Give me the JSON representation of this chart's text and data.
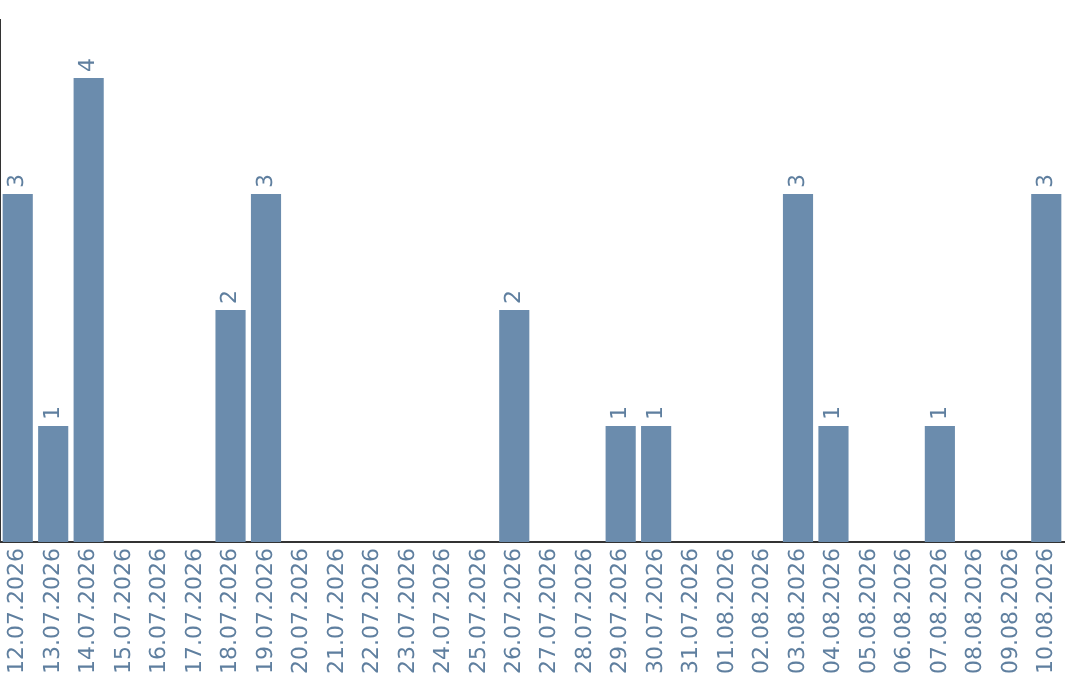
{
  "chart_data": {
    "type": "bar",
    "categories": [
      "12.07.2026",
      "13.07.2026",
      "14.07.2026",
      "15.07.2026",
      "16.07.2026",
      "17.07.2026",
      "18.07.2026",
      "19.07.2026",
      "20.07.2026",
      "21.07.2026",
      "22.07.2026",
      "23.07.2026",
      "24.07.2026",
      "25.07.2026",
      "26.07.2026",
      "27.07.2026",
      "28.07.2026",
      "29.07.2026",
      "30.07.2026",
      "31.07.2026",
      "01.08.2026",
      "02.08.2026",
      "03.08.2026",
      "04.08.2026",
      "05.08.2026",
      "06.08.2026",
      "07.08.2026",
      "08.08.2026",
      "09.08.2026",
      "10.08.2026"
    ],
    "values": [
      3,
      1,
      4,
      0,
      0,
      0,
      2,
      3,
      0,
      0,
      0,
      0,
      0,
      0,
      2,
      0,
      0,
      1,
      1,
      0,
      0,
      0,
      3,
      1,
      0,
      0,
      1,
      0,
      0,
      3
    ],
    "value_labels": [
      "3",
      "1",
      "4",
      null,
      null,
      null,
      "2",
      "3",
      null,
      null,
      null,
      null,
      null,
      null,
      "2",
      null,
      null,
      "1",
      "1",
      null,
      null,
      null,
      "3",
      "1",
      null,
      null,
      "1",
      null,
      null,
      "3"
    ],
    "color": "#6b8cad",
    "tick_labels": "x"
  }
}
